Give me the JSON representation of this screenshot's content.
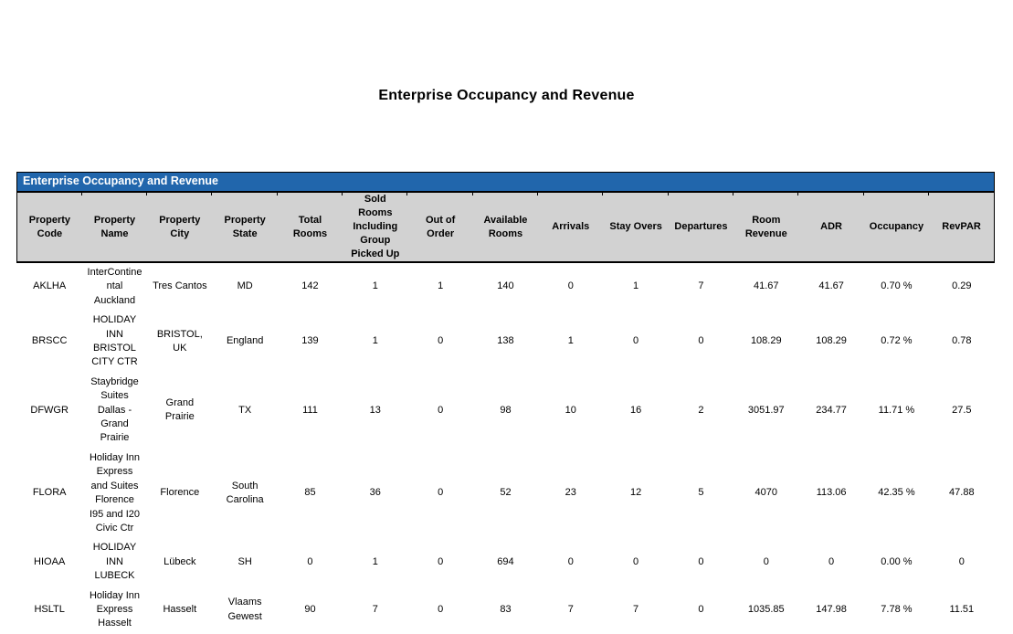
{
  "page": {
    "title": "Enterprise Occupancy and Revenue"
  },
  "report": {
    "band_title": "Enterprise Occupancy and Revenue",
    "colors": {
      "band_blue": "#2166ac",
      "header_gray": "#d2d2d2",
      "border": "#000000",
      "band_text": "#ffffff"
    },
    "columns": [
      {
        "key": "code",
        "label": "Property\nCode"
      },
      {
        "key": "name",
        "label": "Property\nName"
      },
      {
        "key": "city",
        "label": "Property\nCity"
      },
      {
        "key": "state",
        "label": "Property\nState"
      },
      {
        "key": "total_rooms",
        "label": "Total\nRooms"
      },
      {
        "key": "sold_rooms",
        "label": "Sold\nRooms\nIncluding\nGroup\nPicked Up"
      },
      {
        "key": "out_of_order",
        "label": "Out of\nOrder"
      },
      {
        "key": "available_rooms",
        "label": "Available\nRooms"
      },
      {
        "key": "arrivals",
        "label": "Arrivals"
      },
      {
        "key": "stay_overs",
        "label": "Stay Overs"
      },
      {
        "key": "departures",
        "label": "Departures"
      },
      {
        "key": "room_revenue",
        "label": "Room\nRevenue"
      },
      {
        "key": "adr",
        "label": "ADR"
      },
      {
        "key": "occupancy",
        "label": "Occupancy"
      },
      {
        "key": "revpar",
        "label": "RevPAR"
      }
    ],
    "rows": [
      {
        "code": "AKLHA",
        "name": "InterContine\nntal\nAuckland",
        "city": "Tres Cantos",
        "state": "MD",
        "total_rooms": "142",
        "sold_rooms": "1",
        "out_of_order": "1",
        "available_rooms": "140",
        "arrivals": "0",
        "stay_overs": "1",
        "departures": "7",
        "room_revenue": "41.67",
        "adr": "41.67",
        "occupancy": "0.70 %",
        "revpar": "0.29"
      },
      {
        "code": "BRSCC",
        "name": "HOLIDAY\nINN\nBRISTOL\nCITY CTR",
        "city": "BRISTOL,\nUK",
        "state": "England",
        "total_rooms": "139",
        "sold_rooms": "1",
        "out_of_order": "0",
        "available_rooms": "138",
        "arrivals": "1",
        "stay_overs": "0",
        "departures": "0",
        "room_revenue": "108.29",
        "adr": "108.29",
        "occupancy": "0.72 %",
        "revpar": "0.78"
      },
      {
        "code": "DFWGR",
        "name": "Staybridge\nSuites\nDallas -\nGrand\nPrairie",
        "city": "Grand\nPrairie",
        "state": "TX",
        "total_rooms": "111",
        "sold_rooms": "13",
        "out_of_order": "0",
        "available_rooms": "98",
        "arrivals": "10",
        "stay_overs": "16",
        "departures": "2",
        "room_revenue": "3051.97",
        "adr": "234.77",
        "occupancy": "11.71 %",
        "revpar": "27.5"
      },
      {
        "code": "FLORA",
        "name": "Holiday Inn\nExpress\nand Suites\nFlorence\nI95 and I20\nCivic Ctr",
        "city": "Florence",
        "state": "South\nCarolina",
        "total_rooms": "85",
        "sold_rooms": "36",
        "out_of_order": "0",
        "available_rooms": "52",
        "arrivals": "23",
        "stay_overs": "12",
        "departures": "5",
        "room_revenue": "4070",
        "adr": "113.06",
        "occupancy": "42.35 %",
        "revpar": "47.88"
      },
      {
        "code": "HIOAA",
        "name": "HOLIDAY\nINN\nLUBECK",
        "city": "Lübeck",
        "state": "SH",
        "total_rooms": "0",
        "sold_rooms": "1",
        "out_of_order": "0",
        "available_rooms": "694",
        "arrivals": "0",
        "stay_overs": "0",
        "departures": "0",
        "room_revenue": "0",
        "adr": "0",
        "occupancy": "0.00 %",
        "revpar": "0"
      },
      {
        "code": "HSLTL",
        "name": "Holiday Inn\nExpress\nHasselt",
        "city": "Hasselt",
        "state": "Vlaams\nGewest",
        "total_rooms": "90",
        "sold_rooms": "7",
        "out_of_order": "0",
        "available_rooms": "83",
        "arrivals": "7",
        "stay_overs": "7",
        "departures": "0",
        "room_revenue": "1035.85",
        "adr": "147.98",
        "occupancy": "7.78 %",
        "revpar": "11.51"
      }
    ]
  }
}
